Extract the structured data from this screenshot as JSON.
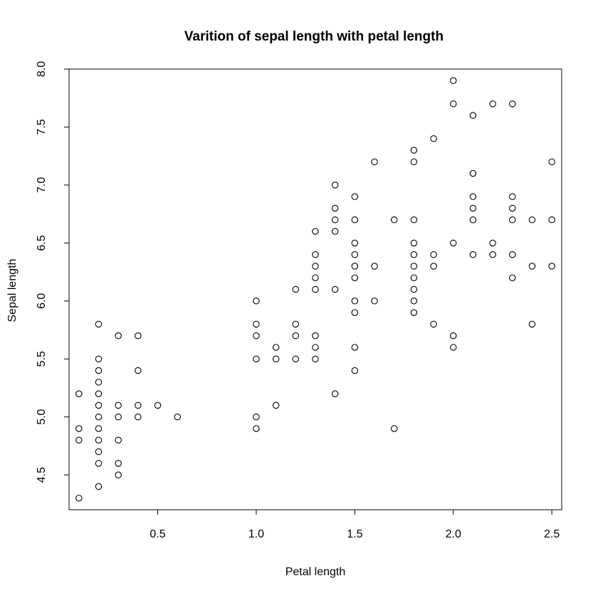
{
  "chart_data": {
    "type": "scatter",
    "title": "Varition of sepal length with petal length",
    "xlabel": "Petal length",
    "ylabel": "Sepal length",
    "xlim": [
      0.05,
      2.55
    ],
    "ylim": [
      4.2,
      8.0
    ],
    "xticks": [
      0.5,
      1.0,
      1.5,
      2.0,
      2.5
    ],
    "xtick_labels": [
      "0.5",
      "1.0",
      "1.5",
      "2.0",
      "2.5"
    ],
    "yticks": [
      4.5,
      5.0,
      5.5,
      6.0,
      6.5,
      7.0,
      7.5,
      8.0
    ],
    "ytick_labels": [
      "4.5",
      "5.0",
      "5.5",
      "6.0",
      "6.5",
      "7.0",
      "7.5",
      "8.0"
    ],
    "grid": false,
    "marker": "open-circle",
    "points": [
      [
        0.1,
        5.2
      ],
      [
        0.1,
        4.9
      ],
      [
        0.1,
        4.8
      ],
      [
        0.1,
        4.3
      ],
      [
        0.2,
        5.8
      ],
      [
        0.2,
        5.5
      ],
      [
        0.2,
        5.4
      ],
      [
        0.2,
        5.3
      ],
      [
        0.2,
        5.2
      ],
      [
        0.2,
        5.1
      ],
      [
        0.2,
        5.0
      ],
      [
        0.2,
        4.9
      ],
      [
        0.2,
        4.8
      ],
      [
        0.2,
        4.7
      ],
      [
        0.2,
        4.6
      ],
      [
        0.2,
        4.4
      ],
      [
        0.3,
        5.7
      ],
      [
        0.3,
        5.1
      ],
      [
        0.3,
        5.0
      ],
      [
        0.3,
        4.8
      ],
      [
        0.3,
        4.6
      ],
      [
        0.3,
        4.5
      ],
      [
        0.4,
        5.7
      ],
      [
        0.4,
        5.4
      ],
      [
        0.4,
        5.1
      ],
      [
        0.4,
        5.0
      ],
      [
        0.5,
        5.1
      ],
      [
        0.6,
        5.0
      ],
      [
        1.0,
        6.0
      ],
      [
        1.0,
        5.8
      ],
      [
        1.0,
        5.7
      ],
      [
        1.0,
        5.5
      ],
      [
        1.0,
        5.0
      ],
      [
        1.0,
        4.9
      ],
      [
        1.1,
        5.6
      ],
      [
        1.1,
        5.5
      ],
      [
        1.1,
        5.1
      ],
      [
        1.2,
        6.1
      ],
      [
        1.2,
        5.8
      ],
      [
        1.2,
        5.7
      ],
      [
        1.2,
        5.5
      ],
      [
        1.3,
        6.6
      ],
      [
        1.3,
        6.4
      ],
      [
        1.3,
        6.3
      ],
      [
        1.3,
        6.2
      ],
      [
        1.3,
        6.1
      ],
      [
        1.3,
        5.7
      ],
      [
        1.3,
        5.6
      ],
      [
        1.3,
        5.5
      ],
      [
        1.4,
        7.0
      ],
      [
        1.4,
        6.8
      ],
      [
        1.4,
        6.7
      ],
      [
        1.4,
        6.6
      ],
      [
        1.4,
        6.1
      ],
      [
        1.4,
        5.2
      ],
      [
        1.5,
        6.9
      ],
      [
        1.5,
        6.7
      ],
      [
        1.5,
        6.5
      ],
      [
        1.5,
        6.4
      ],
      [
        1.5,
        6.3
      ],
      [
        1.5,
        6.2
      ],
      [
        1.5,
        6.0
      ],
      [
        1.5,
        5.9
      ],
      [
        1.5,
        5.6
      ],
      [
        1.5,
        5.4
      ],
      [
        1.6,
        7.2
      ],
      [
        1.6,
        6.3
      ],
      [
        1.6,
        6.0
      ],
      [
        1.7,
        6.7
      ],
      [
        1.7,
        4.9
      ],
      [
        1.8,
        7.3
      ],
      [
        1.8,
        7.2
      ],
      [
        1.8,
        6.7
      ],
      [
        1.8,
        6.5
      ],
      [
        1.8,
        6.4
      ],
      [
        1.8,
        6.3
      ],
      [
        1.8,
        6.2
      ],
      [
        1.8,
        6.1
      ],
      [
        1.8,
        6.0
      ],
      [
        1.8,
        5.9
      ],
      [
        1.9,
        7.4
      ],
      [
        1.9,
        6.4
      ],
      [
        1.9,
        6.3
      ],
      [
        1.9,
        5.8
      ],
      [
        2.0,
        7.9
      ],
      [
        2.0,
        7.7
      ],
      [
        2.0,
        6.5
      ],
      [
        2.0,
        5.7
      ],
      [
        2.0,
        5.6
      ],
      [
        2.1,
        7.6
      ],
      [
        2.1,
        7.1
      ],
      [
        2.1,
        6.9
      ],
      [
        2.1,
        6.8
      ],
      [
        2.1,
        6.7
      ],
      [
        2.1,
        6.4
      ],
      [
        2.2,
        7.7
      ],
      [
        2.2,
        6.5
      ],
      [
        2.2,
        6.4
      ],
      [
        2.3,
        7.7
      ],
      [
        2.3,
        6.9
      ],
      [
        2.3,
        6.8
      ],
      [
        2.3,
        6.7
      ],
      [
        2.3,
        6.4
      ],
      [
        2.3,
        6.2
      ],
      [
        2.4,
        6.7
      ],
      [
        2.4,
        6.3
      ],
      [
        2.4,
        5.8
      ],
      [
        2.5,
        7.2
      ],
      [
        2.5,
        6.7
      ],
      [
        2.5,
        6.3
      ]
    ]
  }
}
